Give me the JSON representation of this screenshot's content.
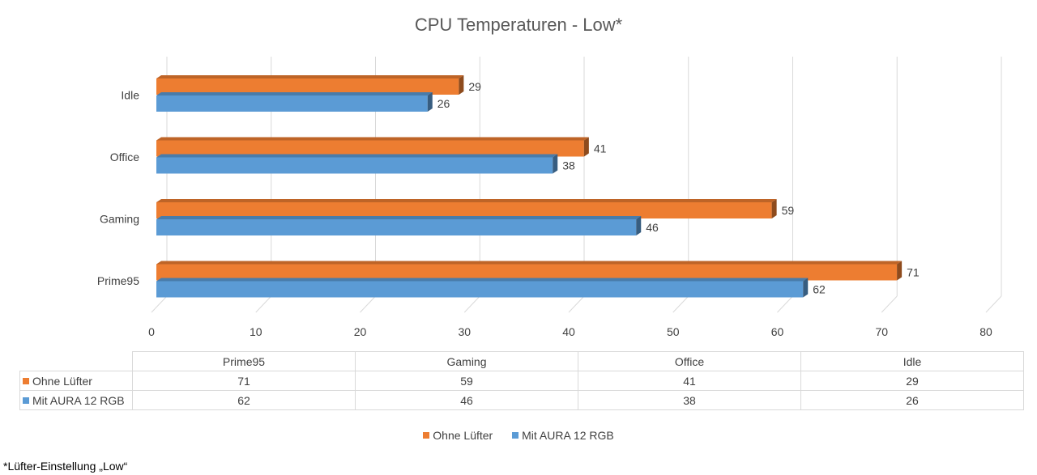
{
  "chart_data": {
    "type": "bar",
    "orientation": "horizontal",
    "title": "CPU Temperaturen - Low*",
    "categories": [
      "Prime95",
      "Gaming",
      "Office",
      "Idle"
    ],
    "series": [
      {
        "name": "Ohne Lüfter",
        "values": [
          71,
          59,
          41,
          29
        ],
        "color": "#ed7d31"
      },
      {
        "name": "Mit AURA 12 RGB",
        "values": [
          62,
          46,
          38,
          26
        ],
        "color": "#5b9bd5"
      }
    ],
    "xlim": [
      0,
      80
    ],
    "xticks": [
      "0",
      "10",
      "20",
      "30",
      "40",
      "50",
      "60",
      "70",
      "80"
    ],
    "grid": true,
    "legend": "bottom",
    "data_table": true
  },
  "footnote": "*Lüfter-Einstellung „Low“"
}
